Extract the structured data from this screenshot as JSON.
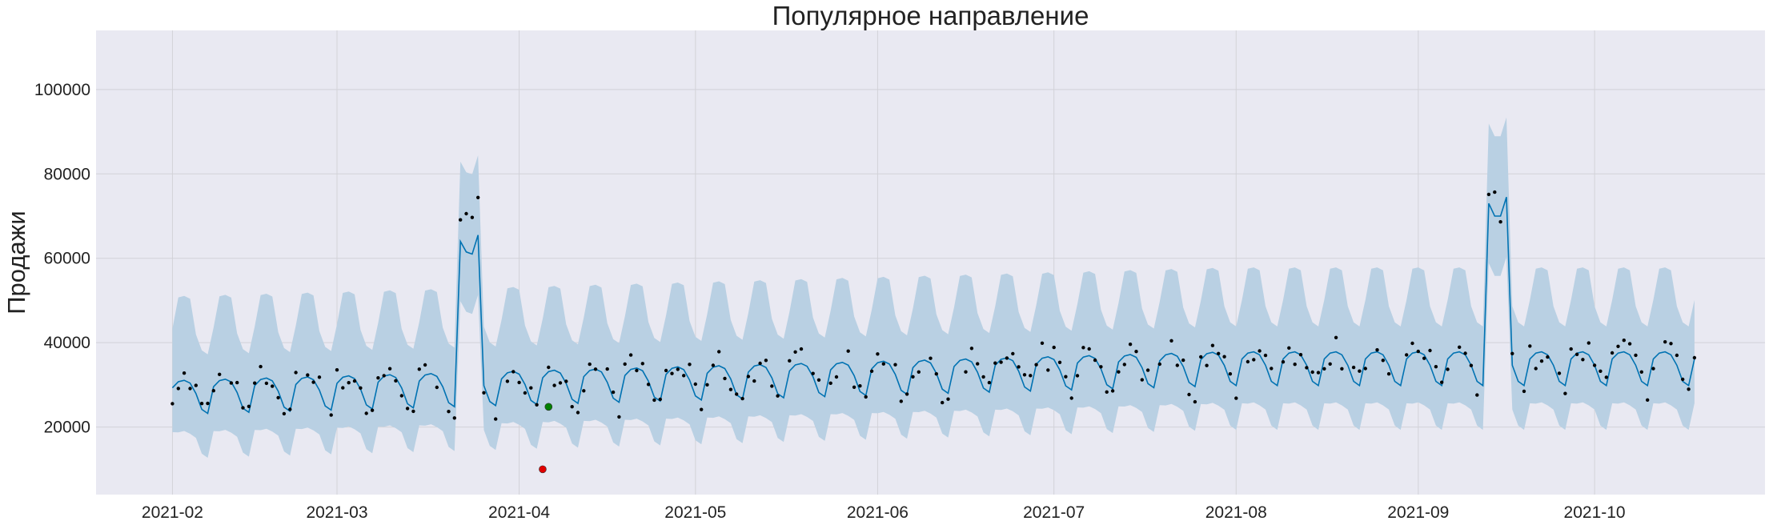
{
  "chart_data": {
    "type": "line",
    "title": "Популярное направление",
    "xlabel": "",
    "ylabel": "Продажи",
    "grid": true,
    "legend": "none",
    "x_range": [
      "2021-01-19",
      "2021-10-30"
    ],
    "ylim": [
      4000,
      114000
    ],
    "x_ticks": [
      "2021-02",
      "2021-03",
      "2021-04",
      "2021-05",
      "2021-06",
      "2021-07",
      "2021-08",
      "2021-09",
      "2021-10"
    ],
    "y_ticks": [
      20000,
      40000,
      60000,
      80000,
      100000
    ],
    "y_tick_labels": [
      "20000",
      "40000",
      "60000",
      "80000",
      "100000"
    ],
    "forecast": {
      "start_date": "2021-02-01",
      "end_date": "2021-10-18",
      "trend": {
        "start": 27500,
        "slope_per_day": 38,
        "max_day": 180
      },
      "weekly_pattern": [
        1800,
        3200,
        3500,
        2800,
        300,
        -3500,
        -4500
      ],
      "uncertainty_band": {
        "upper_offset": 14000,
        "lower_offset": 10500,
        "upper_extra_peak": 6000,
        "lower_extra_peak": 1500
      },
      "holiday_windows": [
        {
          "from": "2021-03-22",
          "to": "2021-03-25",
          "yhat": [
            64000,
            61500,
            61000,
            65500
          ]
        },
        {
          "from": "2021-09-13",
          "to": "2021-09-16",
          "yhat": [
            73000,
            70000,
            70000,
            74500
          ]
        }
      ]
    },
    "actual_points_rule": "forecast value plus residual noise, dense black dots for each day in range",
    "highlight_points": [
      {
        "date": "2021-04-06",
        "value": 24800,
        "color": "#008000"
      },
      {
        "date": "2021-04-05",
        "value": 10000,
        "color": "#e00000"
      }
    ],
    "colors": {
      "plot_background": "#e9e9f2",
      "grid": "#d2d2d8",
      "forecast_line": "#0072b2",
      "uncertainty_band": "#b9d0e3",
      "actual_points": "#000000"
    }
  }
}
